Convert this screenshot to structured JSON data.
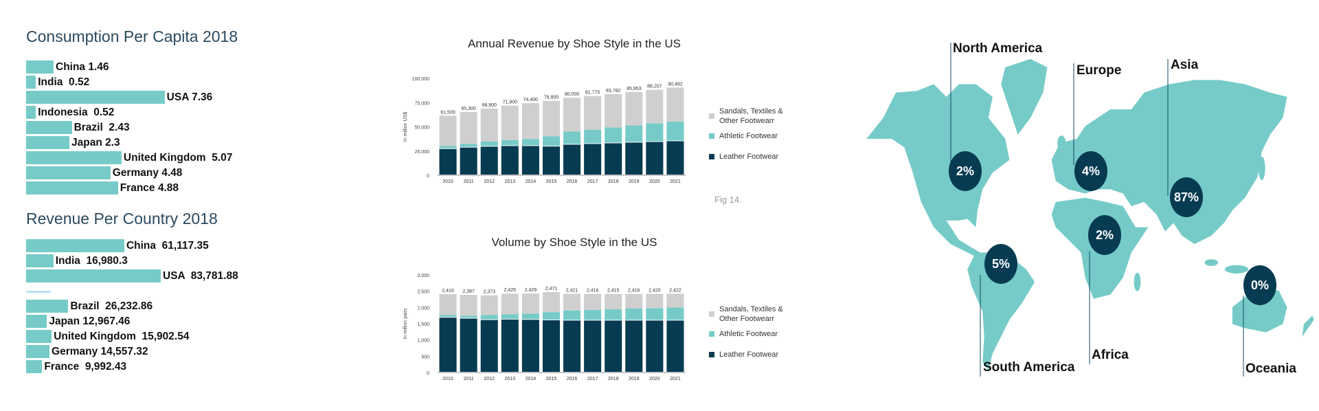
{
  "colors": {
    "teal": "#76cbc8",
    "dark": "#073b52",
    "gray": "#cfcfcf",
    "title": "#2c4a5f"
  },
  "consumption": {
    "title": "Consumption Per Capita 2018",
    "items": [
      {
        "label": "China 1.46",
        "value": 1.46
      },
      {
        "label": "India  0.52",
        "value": 0.52
      },
      {
        "label": "USA 7.36",
        "value": 7.36
      },
      {
        "label": "Indonesia  0.52",
        "value": 0.52
      },
      {
        "label": "Brazil  2.43",
        "value": 2.43
      },
      {
        "label": "Japan 2.3",
        "value": 2.3
      },
      {
        "label": "United Kingdom  5.07",
        "value": 5.07
      },
      {
        "label": "Germany 4.48",
        "value": 4.48
      },
      {
        "label": "France 4.88",
        "value": 4.88
      }
    ]
  },
  "revenue_country": {
    "title": "Revenue Per Country 2018",
    "items": [
      {
        "label": "China  61,117.35",
        "value": 61117.35
      },
      {
        "label": "India  16,980.3",
        "value": 16980.3
      },
      {
        "label": "USA  83,781.88",
        "value": 83781.88
      },
      {
        "label": "Brazil  26,232.86",
        "value": 26232.86
      },
      {
        "label": "Japan 12,967.46",
        "value": 12967.46
      },
      {
        "label": "United Kingdom  15,902.54",
        "value": 15902.54
      },
      {
        "label": "Germany 14,557.32",
        "value": 14557.32
      },
      {
        "label": "France  9,992.43",
        "value": 9992.43
      }
    ]
  },
  "chart_data": [
    {
      "type": "bar",
      "stacked": true,
      "title": "Annual Revenue by Shoe Style in the US",
      "ylabel": "In million US$",
      "ylim": [
        0,
        100000
      ],
      "yticks": [
        "0",
        "25.000",
        "50.000",
        "75.000",
        "100.000"
      ],
      "categories": [
        "2010",
        "2011",
        "2012",
        "2013",
        "2014",
        "2015",
        "2016",
        "2017",
        "2018",
        "2019",
        "2020",
        "2021"
      ],
      "totals": [
        "61,500",
        "65,300",
        "68,900",
        "71,900",
        "74,400",
        "76,800",
        "80,000",
        "81,775",
        "83,782",
        "85,953",
        "88,207",
        "90,482"
      ],
      "series": [
        {
          "name": "Leather Footwear",
          "color": "#073b52",
          "values": [
            27100,
            28600,
            29500,
            30200,
            30200,
            29700,
            31600,
            32300,
            33000,
            33700,
            34400,
            35200
          ]
        },
        {
          "name": "Athletic Footwear",
          "color": "#76cbc8",
          "values": [
            3100,
            3800,
            5300,
            6000,
            7200,
            10400,
            13500,
            14700,
            16400,
            17800,
            19300,
            20100
          ]
        },
        {
          "name": "Sandals, Textiles & Other Footwearr",
          "color": "#cfcfcf",
          "values": [
            31300,
            32900,
            34100,
            35700,
            37000,
            36700,
            34900,
            34775,
            34382,
            34453,
            34507,
            35182
          ]
        }
      ],
      "legend": "right",
      "annotation": "Fig 14."
    },
    {
      "type": "bar",
      "stacked": true,
      "title": "Volume by Shoe Style in the US",
      "ylabel": "In million pairs",
      "ylim": [
        0,
        3000
      ],
      "yticks": [
        "0",
        "500",
        "1,000",
        "1,500",
        "2,000",
        "2,500",
        "3,000"
      ],
      "categories": [
        "2010",
        "2011",
        "2012",
        "2013",
        "2014",
        "2015",
        "2016",
        "2017",
        "2018",
        "2019",
        "2020",
        "2021"
      ],
      "totals": [
        "2,410",
        "2,387",
        "2,373",
        "2,425",
        "2,429",
        "2,471",
        "2,421",
        "2,416",
        "2,415",
        "2,416",
        "2,420",
        "2,422"
      ],
      "series": [
        {
          "name": "Leather Footwear",
          "color": "#073b52",
          "values": [
            1686,
            1657,
            1614,
            1629,
            1621,
            1607,
            1597,
            1597,
            1597,
            1597,
            1597,
            1597
          ]
        },
        {
          "name": "Athletic Footwear",
          "color": "#76cbc8",
          "values": [
            85,
            86,
            157,
            157,
            186,
            250,
            311,
            325,
            347,
            368,
            383,
            404
          ]
        },
        {
          "name": "Sandals, Textiles & Other Footwearr",
          "color": "#cfcfcf",
          "values": [
            639,
            644,
            602,
            639,
            622,
            614,
            513,
            494,
            471,
            451,
            440,
            421
          ]
        }
      ],
      "legend": "right"
    }
  ],
  "map": {
    "regions": [
      {
        "name": "North America",
        "share": "2%"
      },
      {
        "name": "Europe",
        "share": "4%"
      },
      {
        "name": "Asia",
        "share": "87%"
      },
      {
        "name": "Africa",
        "share": "2%"
      },
      {
        "name": "South America",
        "share": "5%"
      },
      {
        "name": "Oceania",
        "share": "0%"
      }
    ]
  }
}
